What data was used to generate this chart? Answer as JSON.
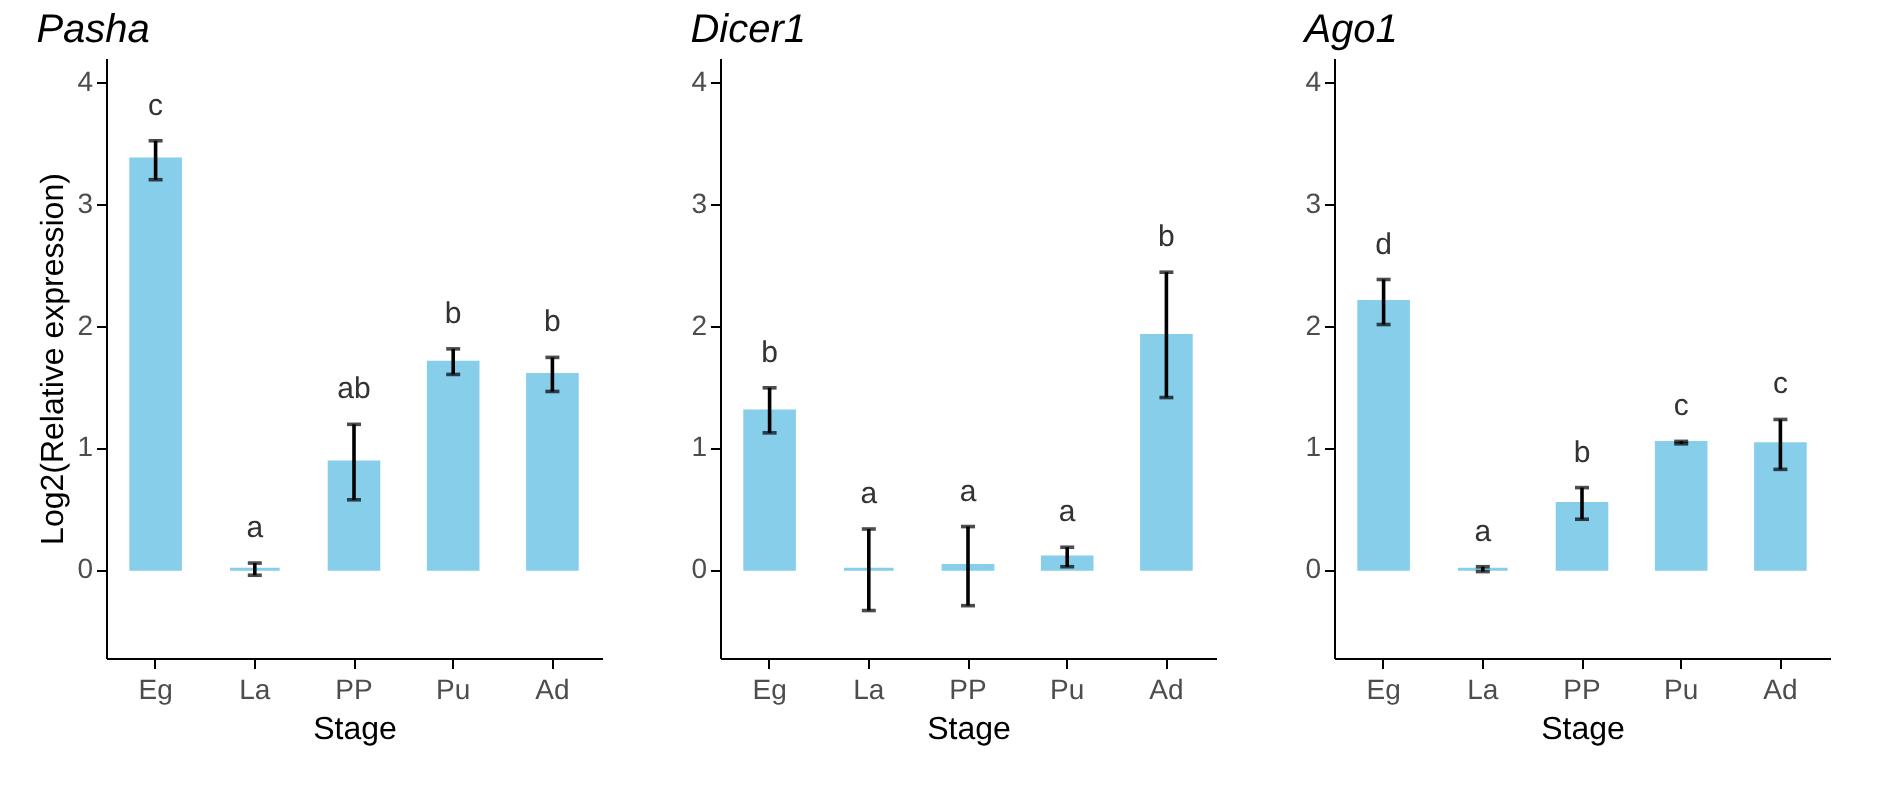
{
  "chart_data": [
    {
      "type": "bar",
      "title": "Pasha",
      "xlabel": "Stage",
      "ylabel": "Log2(Relative expression)",
      "categories": [
        "Eg",
        "La",
        "PP",
        "Pu",
        "Ad"
      ],
      "color": "#87ceeb",
      "values": [
        3.37,
        0,
        0.88,
        1.7,
        1.6
      ],
      "errors": [
        [
          3.2,
          3.52
        ],
        [
          -0.05,
          0.05
        ],
        [
          0.57,
          1.19
        ],
        [
          1.6,
          1.81
        ],
        [
          1.46,
          1.74
        ]
      ],
      "ylim": [
        -0.73,
        4.2
      ],
      "yticks": [
        0,
        1,
        2,
        3,
        4
      ],
      "grid": false,
      "annotations": [
        "c",
        "a",
        "ab",
        "b",
        "b"
      ]
    },
    {
      "type": "bar",
      "title": "Dicer1",
      "xlabel": "Stage",
      "categories": [
        "Eg",
        "La",
        "PP",
        "Pu",
        "Ad"
      ],
      "color": "#87ceeb",
      "values": [
        1.3,
        0,
        0.03,
        0.1,
        1.92
      ],
      "errors": [
        [
          1.12,
          1.49
        ],
        [
          -0.34,
          0.33
        ],
        [
          -0.3,
          0.35
        ],
        [
          0.02,
          0.18
        ],
        [
          1.41,
          2.44
        ]
      ],
      "ylim": [
        -0.73,
        4.2
      ],
      "yticks": [
        0,
        1,
        2,
        3,
        4
      ],
      "grid": false,
      "annotations": [
        "b",
        "a",
        "a",
        "a",
        "b"
      ]
    },
    {
      "type": "bar",
      "title": "Ago1",
      "xlabel": "Stage",
      "categories": [
        "Eg",
        "La",
        "PP",
        "Pu",
        "Ad"
      ],
      "color": "#87ceeb",
      "values": [
        2.2,
        0,
        0.54,
        1.04,
        1.03
      ],
      "errors": [
        [
          2.01,
          2.38
        ],
        [
          -0.02,
          0.02
        ],
        [
          0.41,
          0.67
        ],
        [
          1.03,
          1.05
        ],
        [
          0.82,
          1.23
        ]
      ],
      "ylim": [
        -0.73,
        4.2
      ],
      "yticks": [
        0,
        1,
        2,
        3,
        4
      ],
      "grid": false,
      "annotations": [
        "d",
        "a",
        "b",
        "c",
        "c"
      ]
    }
  ]
}
